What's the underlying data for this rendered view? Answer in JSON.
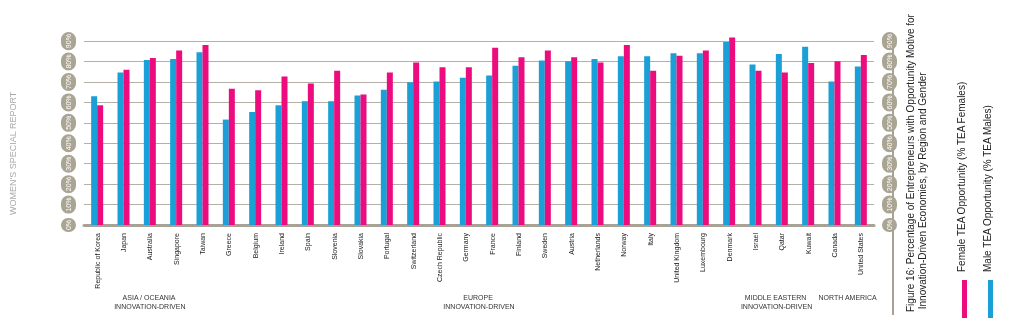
{
  "chart_data": {
    "type": "bar",
    "title": "Figure 16: Percentage of Entrepreneurs with Opportunity Motive for Innovation-Driven Economies, by Region and Gender",
    "categories": [
      "Republic of Korea",
      "Japan",
      "Australia",
      "Singapore",
      "Taiwan",
      "Greece",
      "Belgium",
      "Ireland",
      "Spain",
      "Slovenia",
      "Slovakia",
      "Portugal",
      "Switzerland",
      "Czech Republic",
      "Germany",
      "France",
      "Finland",
      "Sweden",
      "Austria",
      "Netherlands",
      "Norway",
      "Italy",
      "United Kingdom",
      "Luxembourg",
      "Denmark",
      "Israel",
      "Qatar",
      "Kuwait",
      "Canada",
      "United States"
    ],
    "series": [
      {
        "name": "Male TEA Opportunity (% TEA Males)",
        "color": "#1a9fd6",
        "values": [
          63.0,
          74.7,
          80.8,
          81.3,
          84.5,
          51.6,
          55.3,
          58.6,
          60.6,
          60.6,
          63.4,
          66.2,
          69.9,
          70.2,
          72.1,
          73.2,
          78.0,
          80.5,
          80.1,
          81.3,
          82.6,
          82.6,
          84.1,
          84.1,
          89.6,
          78.5,
          83.7,
          87.3,
          70.2,
          77.6
        ]
      },
      {
        "name": "Female TEA Opportunity (% TEA Females)",
        "color": "#ec0c7e",
        "values": [
          58.6,
          76.0,
          81.8,
          85.4,
          88.1,
          66.7,
          65.9,
          72.7,
          69.2,
          75.5,
          63.9,
          74.7,
          79.6,
          77.2,
          77.2,
          86.7,
          82.1,
          85.4,
          82.1,
          79.6,
          88.1,
          75.5,
          82.9,
          85.4,
          91.8,
          75.5,
          74.7,
          79.3,
          80.1,
          83.2
        ]
      }
    ],
    "ylim": [
      0,
      93
    ],
    "yticks": [
      {
        "value": 0,
        "label": "0%"
      },
      {
        "value": 10,
        "label": "10%"
      },
      {
        "value": 20,
        "label": "20%"
      },
      {
        "value": 30,
        "label": "30%"
      },
      {
        "value": 40,
        "label": "40%"
      },
      {
        "value": 50,
        "label": "50%"
      },
      {
        "value": 60,
        "label": "60%"
      },
      {
        "value": 70,
        "label": "70%"
      },
      {
        "value": 80,
        "label": "80%"
      },
      {
        "value": 90,
        "label": "90%"
      }
    ],
    "y2lim": [
      0,
      93
    ],
    "y2ticks": [
      {
        "value": 0,
        "label": "0%"
      },
      {
        "value": 10,
        "label": "10%"
      },
      {
        "value": 20,
        "label": "20%"
      },
      {
        "value": 30,
        "label": "30%"
      },
      {
        "value": 40,
        "label": "40%"
      },
      {
        "value": 50,
        "label": "50%"
      },
      {
        "value": 60,
        "label": "60%"
      },
      {
        "value": 70,
        "label": "70%"
      },
      {
        "value": 80,
        "label": "80%"
      },
      {
        "value": 90,
        "label": "90%"
      }
    ],
    "grid": "y",
    "legend": "right",
    "annotations": [
      "WOMEN'S SPECIAL REPORT",
      "ASIA / OCEANIA INNOVATION-DRIVEN",
      "EUROPE INNOVATION-DRIVEN",
      "MIDDLE EASTERN INNOVATION-DRIVEN",
      "NORTH AMERICA"
    ]
  }
}
